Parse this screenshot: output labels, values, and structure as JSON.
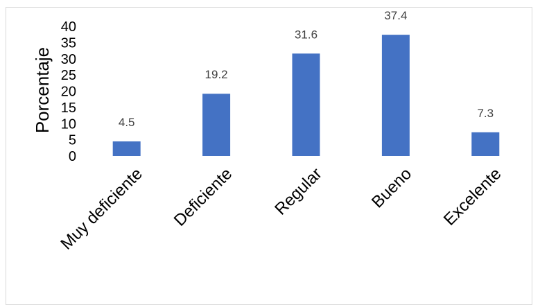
{
  "chart_data": {
    "type": "bar",
    "title": "",
    "xlabel": "",
    "ylabel": "Porcentaje",
    "categories": [
      "Muy deficiente",
      "Deficiente",
      "Regular",
      "Bueno",
      "Excelente"
    ],
    "values": [
      4.5,
      19.2,
      31.6,
      37.4,
      7.3
    ],
    "data_labels": [
      "4.5",
      "19.2",
      "31.6",
      "37.4",
      "7.3"
    ],
    "yticks": [
      "0",
      "5",
      "10",
      "15",
      "20",
      "25",
      "30",
      "35",
      "40"
    ],
    "ylim": [
      0,
      40
    ],
    "grid": false,
    "legend": "none",
    "bar_color": "#4472c4",
    "category_label_rotation_deg": -45
  }
}
